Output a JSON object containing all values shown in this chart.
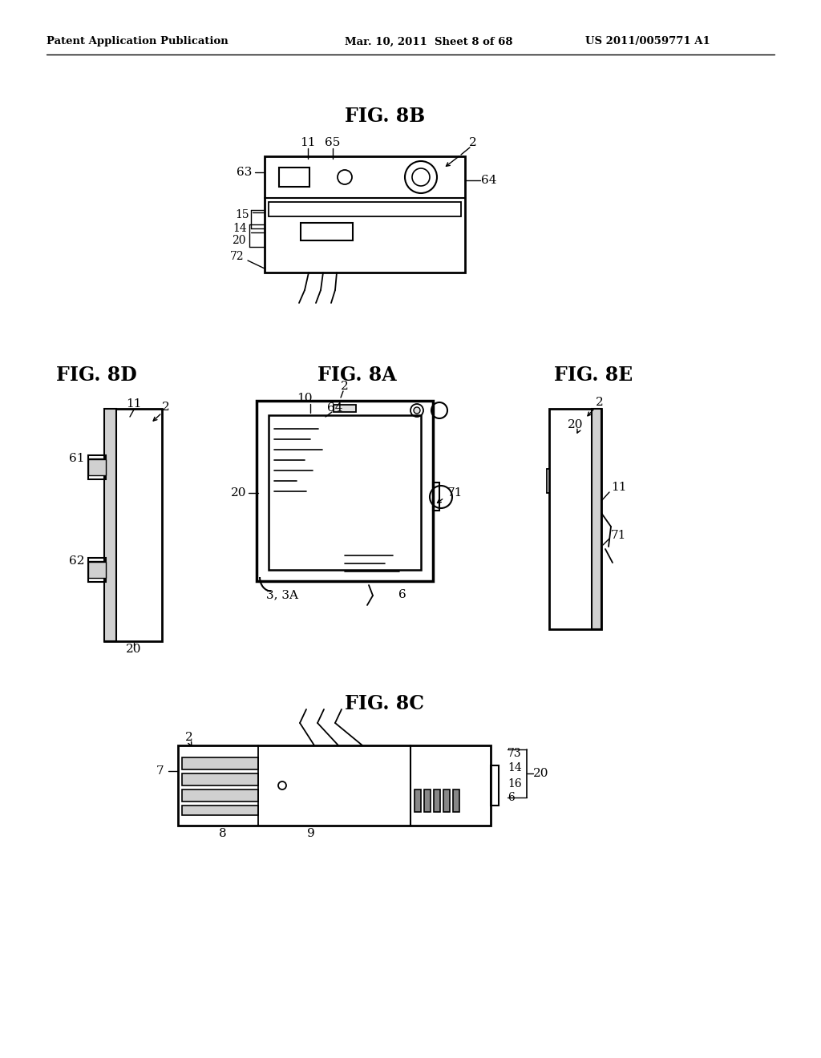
{
  "bg_color": "#ffffff",
  "header_left": "Patent Application Publication",
  "header_mid": "Mar. 10, 2011  Sheet 8 of 68",
  "header_right": "US 2011/0059771 A1"
}
